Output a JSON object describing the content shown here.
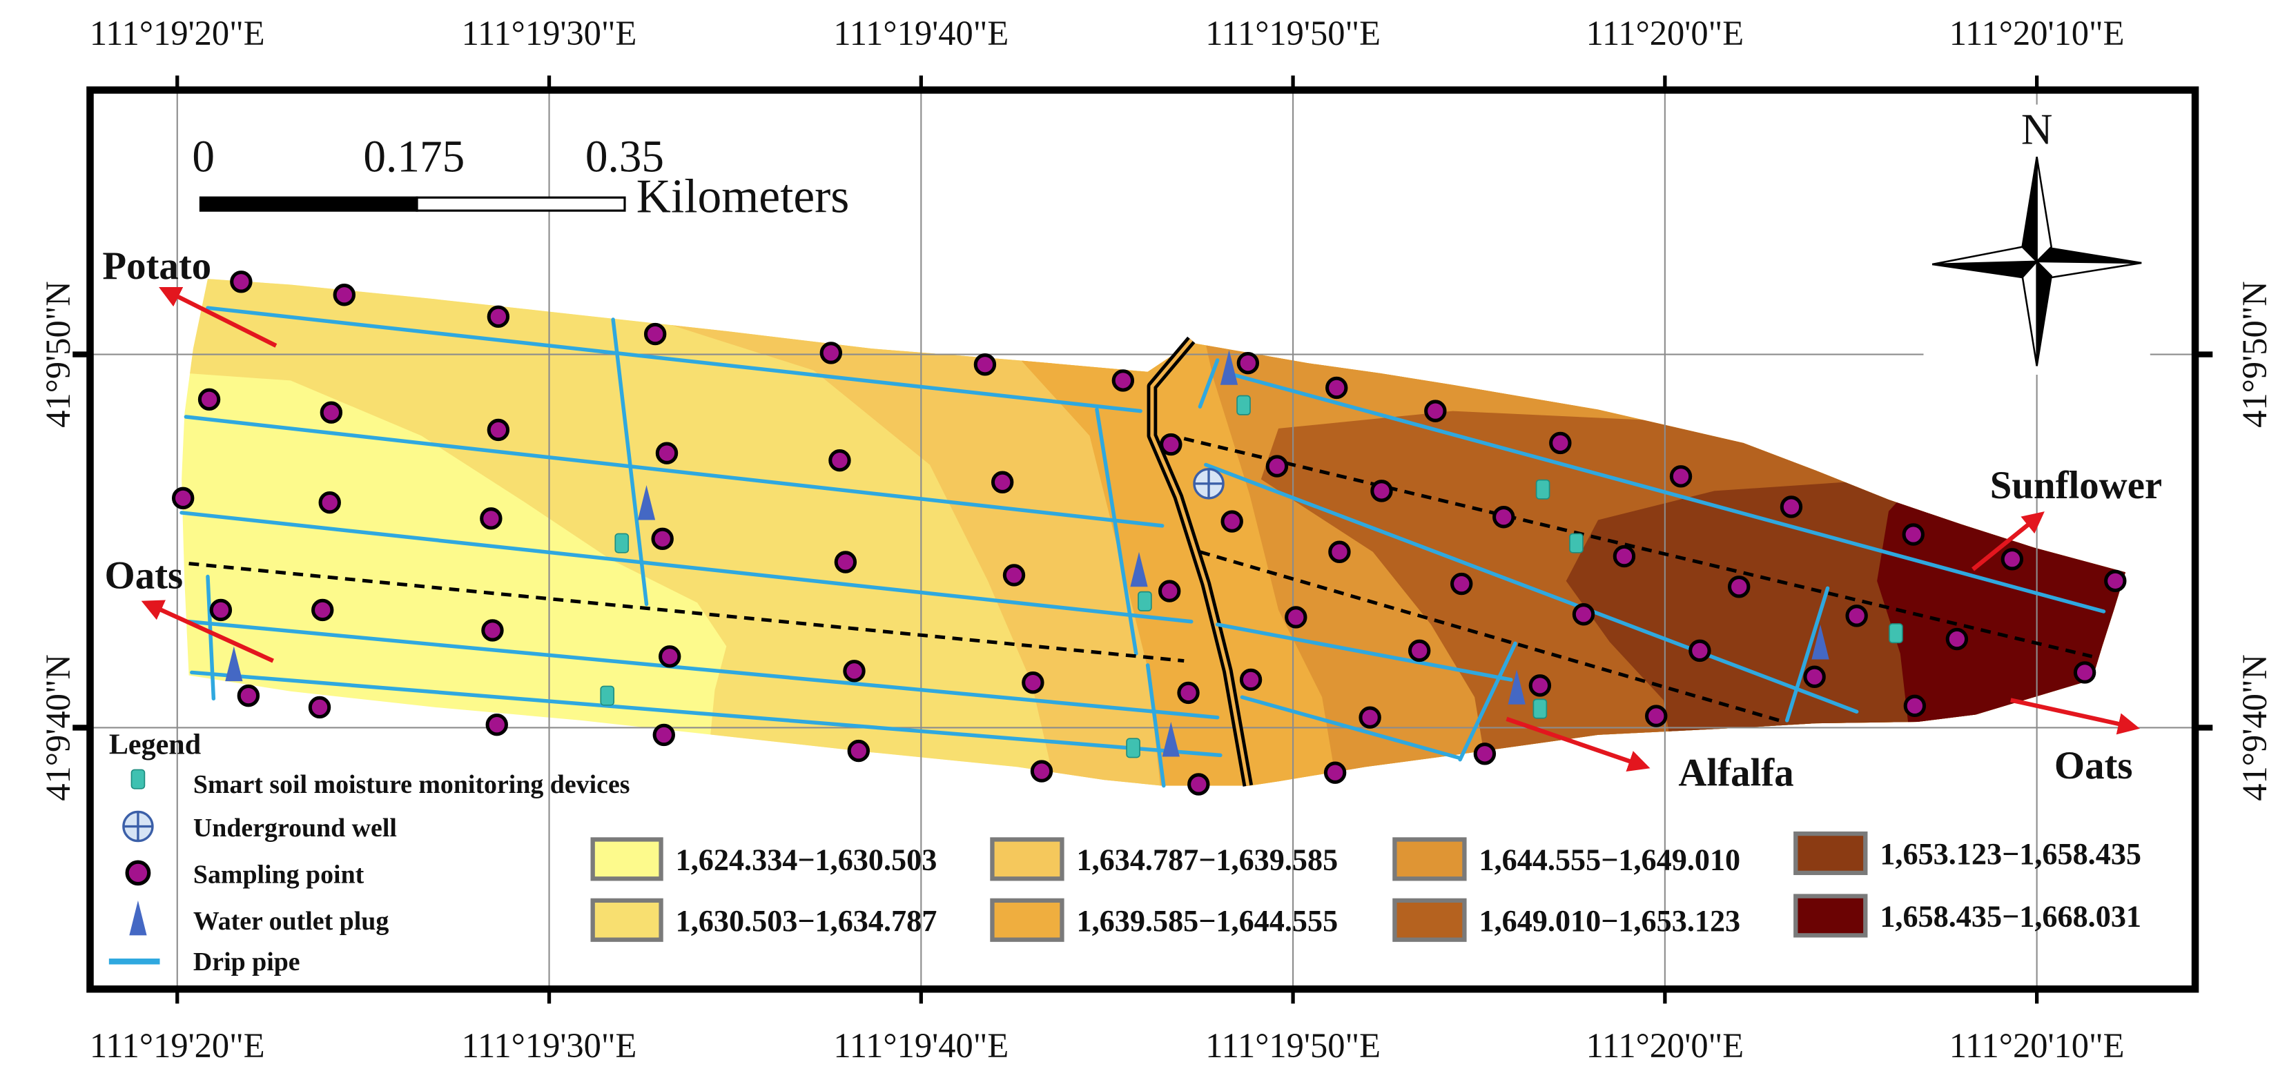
{
  "axes": {
    "longitude_labels": [
      "111°19'20\"E",
      "111°19'30\"E",
      "111°19'40\"E",
      "111°19'50\"E",
      "111°20'0\"E",
      "111°20'10\"E"
    ],
    "latitude_labels": [
      "41°9'50\"N",
      "41°9'40\"N"
    ]
  },
  "scale_bar": {
    "ticks": [
      "0",
      "0.175",
      "0.35"
    ],
    "unit": "Kilometers"
  },
  "north_arrow": {
    "label": "N",
    "icon": "north-arrow-icon"
  },
  "crop_directions": [
    {
      "label": "Potato"
    },
    {
      "label": "Oats"
    },
    {
      "label": "Sunflower"
    },
    {
      "label": "Alfalfa"
    },
    {
      "label": "Oats"
    }
  ],
  "crop_arrow_color": "#e3161e",
  "legend": {
    "title": "Legend",
    "items": [
      {
        "label": "Smart soil moisture monitoring  devices",
        "icon": "moisture-device-icon",
        "color": "#3fc1b1"
      },
      {
        "label": "Underground well",
        "icon": "well-icon",
        "color": "#d6e4f5"
      },
      {
        "label": "Sampling point",
        "icon": "sampling-point-icon",
        "color": "#a3128d"
      },
      {
        "label": "Water outlet plug",
        "icon": "outlet-plug-icon",
        "color": "#4468c4"
      },
      {
        "label": "Drip pipe",
        "icon": "drip-pipe-icon",
        "color": "#2fa8df"
      }
    ]
  },
  "elevation_classes": [
    {
      "label": "1,624.334−1,630.503",
      "color": "#fdfa8c"
    },
    {
      "label": "1,630.503−1,634.787",
      "color": "#f8df70"
    },
    {
      "label": "1,634.787−1,639.585",
      "color": "#f5c85c"
    },
    {
      "label": "1,639.585−1,644.555",
      "color": "#efae3f"
    },
    {
      "label": "1,644.555−1,649.010",
      "color": "#df9534"
    },
    {
      "label": "1,649.010−1,653.123",
      "color": "#b5621f"
    },
    {
      "label": "1,653.123−1,658.435",
      "color": "#8b3b13"
    },
    {
      "label": "1,658.435−1,668.031",
      "color": "#6b0303"
    }
  ]
}
